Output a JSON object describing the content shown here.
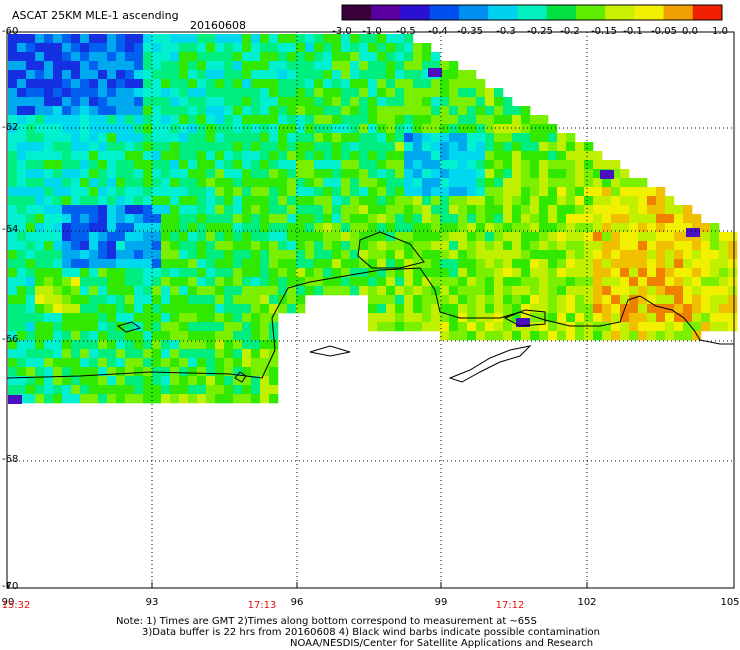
{
  "header": {
    "title": "ASCAT 25KM MLE-1 ascending",
    "date": "20160608"
  },
  "colorbar": {
    "labels": [
      "-3.0",
      "-1.0",
      "-0.5",
      "-0.4",
      "-0.35",
      "-0.3",
      "-0.25",
      "-0.2",
      "-0.15",
      "-0.1",
      "-0.05",
      "0.0",
      "1.0"
    ],
    "colors": [
      "#3a003a",
      "#5a00a0",
      "#2a10d0",
      "#0050f0",
      "#0090f0",
      "#00d0f0",
      "#00f0c0",
      "#00e040",
      "#60ee00",
      "#c8f000",
      "#f0f000",
      "#f0a000",
      "#f02000"
    ]
  },
  "axes": {
    "lat_labels": [
      "-60",
      "-62",
      "-64",
      "-66",
      "-68",
      "-70"
    ],
    "lon_labels": [
      "90",
      "93",
      "96",
      "99",
      "102",
      "105"
    ],
    "time_labels": [
      "15:32",
      "17:13",
      "17:12"
    ]
  },
  "notes": {
    "line1": "Note: 1) Times are GMT 2)Times along bottom correspond to measurement at ~65S",
    "line2": "3)Data buffer is 22 hrs from 20160608 4) Black wind barbs indicate possible contamination",
    "line3": "NOAA/NESDIS/Center for Satellite Applications and Research"
  }
}
